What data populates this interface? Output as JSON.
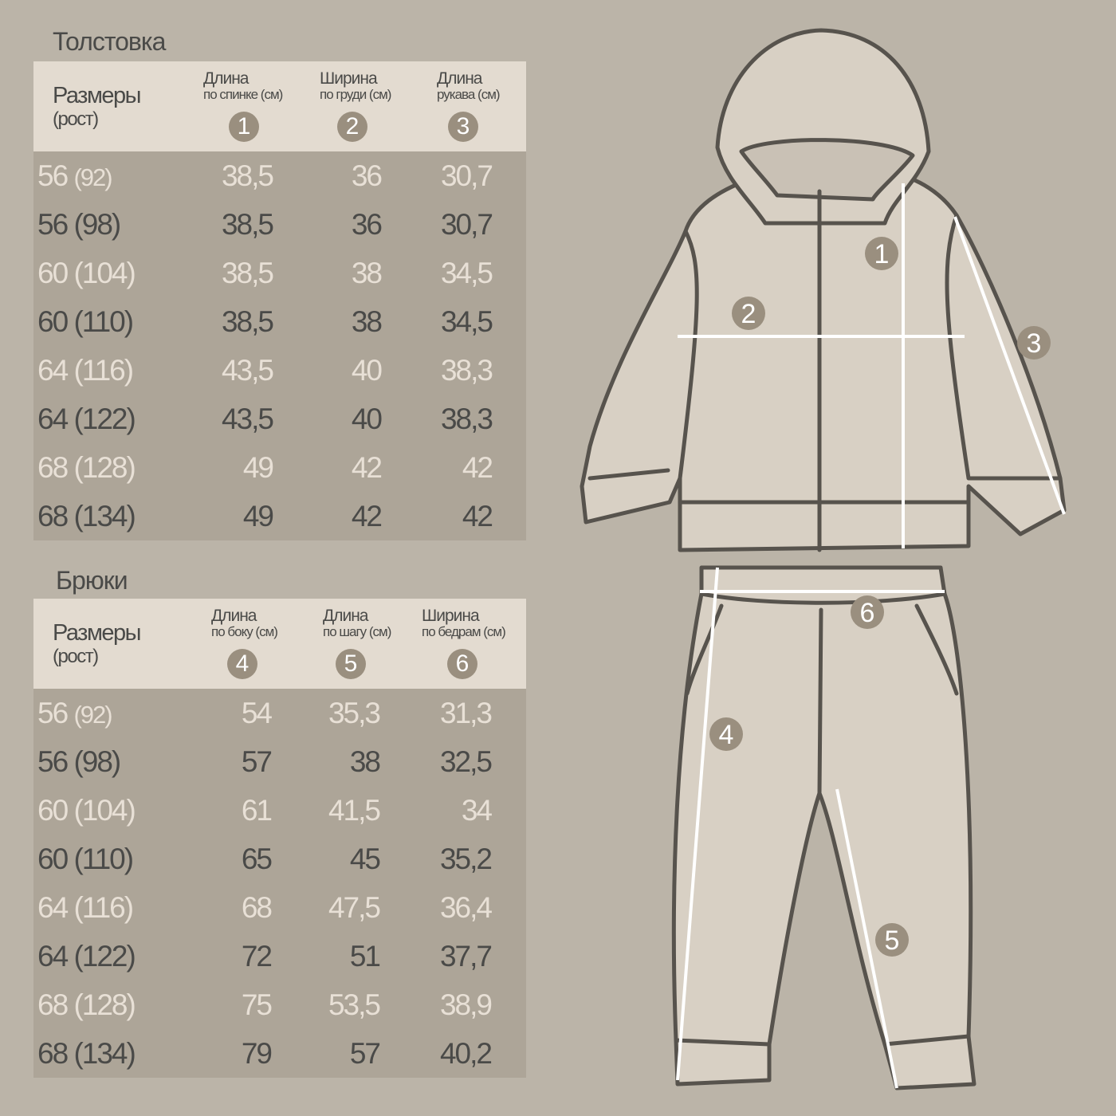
{
  "hoodie": {
    "title": "Толстовка",
    "size_header": "Размеры",
    "size_sub": "(рост)",
    "columns": [
      {
        "line1": "Длина",
        "line2": "по спинке (см)",
        "badge": "1"
      },
      {
        "line1": "Ширина",
        "line2": "по груди (см)",
        "badge": "2"
      },
      {
        "line1": "Длина",
        "line2": "рукава (см)",
        "badge": "3"
      }
    ],
    "rows": [
      {
        "size": "56",
        "height": "(92)",
        "v": [
          "38,5",
          "36",
          "30,7"
        ]
      },
      {
        "size": "56",
        "height": "(98)",
        "v": [
          "38,5",
          "36",
          "30,7"
        ]
      },
      {
        "size": "60",
        "height": "(104)",
        "v": [
          "38,5",
          "38",
          "34,5"
        ]
      },
      {
        "size": "60",
        "height": "(110)",
        "v": [
          "38,5",
          "38",
          "34,5"
        ]
      },
      {
        "size": "64",
        "height": "(116)",
        "v": [
          "43,5",
          "40",
          "38,3"
        ]
      },
      {
        "size": "64",
        "height": "(122)",
        "v": [
          "43,5",
          "40",
          "38,3"
        ]
      },
      {
        "size": "68",
        "height": "(128)",
        "v": [
          "49",
          "42",
          "42"
        ]
      },
      {
        "size": "68",
        "height": "(134)",
        "v": [
          "49",
          "42",
          "42"
        ]
      }
    ]
  },
  "pants": {
    "title": "Брюки",
    "size_header": "Размеры",
    "size_sub": "(рост)",
    "columns": [
      {
        "line1": "Длина",
        "line2": "по боку (см)",
        "badge": "4"
      },
      {
        "line1": "Длина",
        "line2": "по шагу (см)",
        "badge": "5"
      },
      {
        "line1": "Ширина",
        "line2": "по бедрам (см)",
        "badge": "6"
      }
    ],
    "rows": [
      {
        "size": "56",
        "height": "(92)",
        "v": [
          "54",
          "35,3",
          "31,3"
        ]
      },
      {
        "size": "56",
        "height": "(98)",
        "v": [
          "57",
          "38",
          "32,5"
        ]
      },
      {
        "size": "60",
        "height": "(104)",
        "v": [
          "61",
          "41,5",
          "34"
        ]
      },
      {
        "size": "60",
        "height": "(110)",
        "v": [
          "65",
          "45",
          "35,2"
        ]
      },
      {
        "size": "64",
        "height": "(116)",
        "v": [
          "68",
          "47,5",
          "36,4"
        ]
      },
      {
        "size": "64",
        "height": "(122)",
        "v": [
          "72",
          "51",
          "37,7"
        ]
      },
      {
        "size": "68",
        "height": "(128)",
        "v": [
          "75",
          "53,5",
          "38,9"
        ]
      },
      {
        "size": "68",
        "height": "(134)",
        "v": [
          "79",
          "57",
          "40,2"
        ]
      }
    ]
  },
  "diagram_badges": [
    "1",
    "2",
    "3",
    "4",
    "5",
    "6"
  ],
  "colors": {
    "background": "#bbb4a8",
    "header": "#e3dbd0",
    "table_body": "#ada598",
    "badge": "#9a8f7f",
    "garment_fill": "#d8d0c4",
    "outline": "#57534d"
  }
}
